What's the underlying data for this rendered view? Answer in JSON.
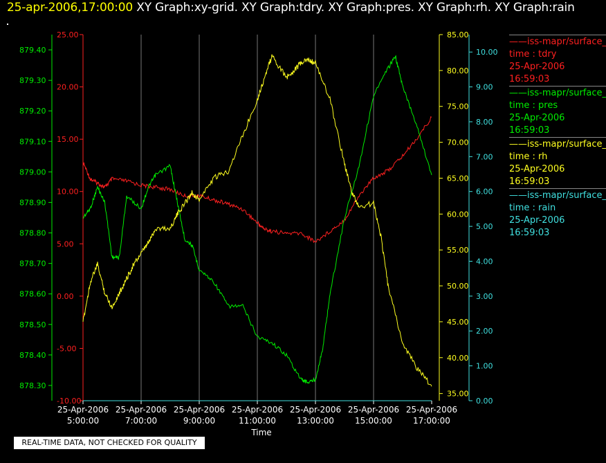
{
  "title": {
    "datetime": "25-apr-2006,17:00:00",
    "graphs": "XY Graph:xy-grid.  XY Graph:tdry.  XY Graph:pres.  XY Graph:rh.  XY Graph:rain"
  },
  "quality_note": "REAL-TIME DATA, NOT CHECKED FOR QUALITY",
  "legend": [
    {
      "name": "iss-mapr/surface_",
      "var": "time : tdry",
      "date": "25-Apr-2006",
      "time": "16:59:03",
      "color": "#ff2020"
    },
    {
      "name": "iss-mapr/surface_",
      "var": "time : pres",
      "date": "25-Apr-2006",
      "time": "16:59:03",
      "color": "#00ee00"
    },
    {
      "name": "iss-mapr/surface_",
      "var": "time : rh",
      "date": "25-Apr-2006",
      "time": "16:59:03",
      "color": "#ffff20"
    },
    {
      "name": "iss-mapr/surface_",
      "var": "time : rain",
      "date": "25-Apr-2006",
      "time": "16:59:03",
      "color": "#40e0e0"
    }
  ],
  "chart_data": {
    "type": "line",
    "xlabel": "Time",
    "x_ticks": [
      {
        "date": "25-Apr-2006",
        "time": "5:00:00"
      },
      {
        "date": "25-Apr-2006",
        "time": "7:00:00"
      },
      {
        "date": "25-Apr-2006",
        "time": "9:00:00"
      },
      {
        "date": "25-Apr-2006",
        "time": "11:00:00"
      },
      {
        "date": "25-Apr-2006",
        "time": "13:00:00"
      },
      {
        "date": "25-Apr-2006",
        "time": "15:00:00"
      },
      {
        "date": "25-Apr-2006",
        "time": "17:00:00"
      }
    ],
    "x_hours": [
      5,
      7,
      9,
      11,
      13,
      15,
      17
    ],
    "xlim": [
      5,
      17
    ],
    "grid": true,
    "axes": [
      {
        "id": "tdry",
        "color": "#ff2020",
        "ylim": [
          -10,
          25
        ],
        "ticks": [
          "-10.00",
          "-5.00",
          "0.00",
          "5.00",
          "10.00",
          "15.00",
          "20.00",
          "25.00"
        ]
      },
      {
        "id": "pres",
        "color": "#00ee00",
        "ylim": [
          878.25,
          879.45
        ],
        "ticks": [
          "878.30",
          "878.40",
          "878.50",
          "878.60",
          "878.70",
          "878.80",
          "878.90",
          "879.00",
          "879.10",
          "879.20",
          "879.30",
          "879.40"
        ]
      },
      {
        "id": "rh",
        "color": "#ffff20",
        "ylim": [
          34,
          85
        ],
        "ticks": [
          "35.00",
          "40.00",
          "45.00",
          "50.00",
          "55.00",
          "60.00",
          "65.00",
          "70.00",
          "75.00",
          "80.00",
          "85.00"
        ]
      },
      {
        "id": "rain",
        "color": "#40e0e0",
        "ylim": [
          0,
          10.5
        ],
        "ticks": [
          "0.00",
          "1.00",
          "2.00",
          "3.00",
          "4.00",
          "5.00",
          "6.00",
          "7.00",
          "8.00",
          "9.00",
          "10.00"
        ]
      }
    ],
    "series": [
      {
        "name": "tdry",
        "axis": "tdry",
        "color": "#ff2020",
        "x": [
          5.0,
          5.25,
          5.5,
          5.75,
          6.0,
          6.5,
          7.0,
          7.5,
          8.0,
          8.5,
          9.0,
          9.5,
          10.0,
          10.5,
          11.0,
          11.25,
          11.5,
          12.0,
          12.5,
          13.0,
          13.5,
          14.0,
          14.5,
          15.0,
          15.5,
          16.0,
          16.5,
          17.0
        ],
        "y": [
          12.8,
          11.2,
          10.8,
          10.4,
          11.2,
          11.0,
          10.6,
          10.4,
          10.2,
          9.6,
          9.6,
          9.2,
          8.8,
          8.3,
          7.0,
          6.4,
          6.2,
          6.0,
          6.0,
          5.2,
          6.2,
          7.3,
          9.6,
          11.3,
          12.0,
          13.4,
          15.1,
          17.1
        ]
      },
      {
        "name": "pres",
        "axis": "pres",
        "color": "#00ee00",
        "x": [
          5.0,
          5.25,
          5.5,
          5.75,
          6.0,
          6.25,
          6.5,
          7.0,
          7.25,
          7.5,
          8.0,
          8.25,
          8.5,
          8.75,
          9.0,
          9.5,
          10.0,
          10.5,
          11.0,
          11.5,
          12.0,
          12.5,
          12.75,
          13.0,
          13.25,
          13.5,
          14.0,
          14.5,
          15.0,
          15.5,
          15.75,
          16.0,
          16.5,
          17.0
        ],
        "y": [
          878.85,
          878.88,
          878.95,
          878.9,
          878.72,
          878.72,
          878.92,
          878.88,
          878.95,
          878.99,
          879.02,
          878.9,
          878.78,
          878.76,
          878.68,
          878.64,
          878.56,
          878.56,
          878.46,
          878.44,
          878.4,
          878.32,
          878.31,
          878.32,
          878.42,
          878.6,
          878.85,
          879.02,
          879.25,
          879.34,
          879.38,
          879.28,
          879.15,
          878.99
        ]
      },
      {
        "name": "rh",
        "axis": "rh",
        "color": "#ffff20",
        "x": [
          5.0,
          5.25,
          5.5,
          5.75,
          6.0,
          6.25,
          6.5,
          6.75,
          7.0,
          7.25,
          7.5,
          8.0,
          8.25,
          8.5,
          8.75,
          9.0,
          9.5,
          10.0,
          10.5,
          11.0,
          11.25,
          11.5,
          12.0,
          12.25,
          12.5,
          12.75,
          13.0,
          13.5,
          14.0,
          14.25,
          14.5,
          15.0,
          15.25,
          15.5,
          16.0,
          16.5,
          17.0
        ],
        "y": [
          45.0,
          50.5,
          53.0,
          49.0,
          47.0,
          49.0,
          51.0,
          53.0,
          54.5,
          56.0,
          58.0,
          58.0,
          60.0,
          61.5,
          63.0,
          62.0,
          65.0,
          66.0,
          71.0,
          76.0,
          79.0,
          82.0,
          79.0,
          80.0,
          81.0,
          81.5,
          81.0,
          76.0,
          67.0,
          63.0,
          61.0,
          61.5,
          57.0,
          50.0,
          42.0,
          38.5,
          36.0
        ]
      },
      {
        "name": "rain",
        "axis": "rain",
        "color": "#40e0e0",
        "x": [
          5.0,
          17.0
        ],
        "y": [
          0.0,
          0.0
        ]
      }
    ]
  }
}
